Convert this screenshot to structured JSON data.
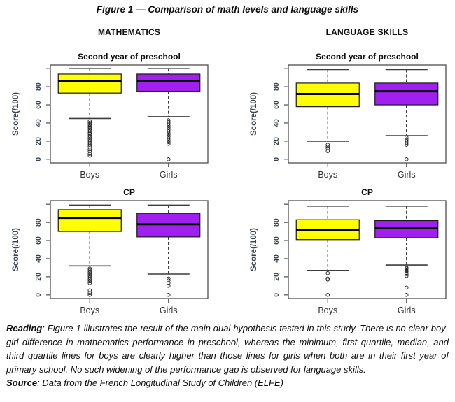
{
  "figure": {
    "title": "Figure 1 — Comparison of math levels and language skills",
    "columns": [
      {
        "header": "MATHEMATICS"
      },
      {
        "header": "LANGUAGE SKILLS"
      }
    ],
    "notes": {
      "reading_label": "Reading",
      "reading_text": ": Figure 1 illustrates the result of the main dual hypothesis tested in this study. There is no clear boy-girl difference in mathematics performance in preschool, whereas the minimum, first quartile, median, and third quartile lines for boys are clearly higher than those lines for girls when both are in their first year of primary school. No such widening of the performance gap is observed for language skills.",
      "source_label": "Source",
      "source_text": ": Data from the French Longitudinal Study of Children (ELFE)"
    }
  },
  "colors": {
    "boys_box": "#FFFF00",
    "girls_box": "#A020F0",
    "box_border": "#1a1a1a",
    "median": "#000000",
    "whisker": "#1a1a1a",
    "cap": "#3c3c3c",
    "frame": "#4d4d4d",
    "outlier": "#2a2a2a",
    "axis_text": "#38424f"
  },
  "chart_data": [
    {
      "type": "box",
      "panel": "MATHEMATICS",
      "title": "Second year of preschool",
      "ylabel": "Score(/100)",
      "ylim": [
        -4,
        104
      ],
      "yticks_labeled": [
        0,
        20,
        40,
        60,
        80
      ],
      "yticks_unlabeled": [
        100
      ],
      "categories": [
        "Boys",
        "Girls"
      ],
      "series": [
        {
          "name": "Boys",
          "color_key": "boys_box",
          "whisker_low": 45,
          "q1": 73,
          "median": 86,
          "q3": 94,
          "whisker_high": 100,
          "outliers": [
            42,
            40,
            38,
            36,
            35,
            33,
            31,
            29,
            28,
            26,
            24,
            22,
            20,
            18,
            16,
            14,
            11,
            9,
            6,
            4
          ]
        },
        {
          "name": "Girls",
          "color_key": "girls_box",
          "whisker_low": 47,
          "q1": 75,
          "median": 86,
          "q3": 94,
          "whisker_high": 100,
          "outliers": [
            43,
            41,
            39,
            37,
            35,
            33,
            31,
            29,
            27,
            25,
            23,
            21,
            19,
            17,
            0
          ]
        }
      ]
    },
    {
      "type": "box",
      "panel": "LANGUAGE SKILLS",
      "title": "Second year of preschool",
      "ylabel": "Score(/100)",
      "ylim": [
        -4,
        104
      ],
      "yticks_labeled": [
        0,
        20,
        40,
        60,
        80
      ],
      "yticks_unlabeled": [
        100
      ],
      "categories": [
        "Boys",
        "Girls"
      ],
      "series": [
        {
          "name": "Boys",
          "color_key": "boys_box",
          "whisker_low": 20,
          "q1": 58,
          "median": 72,
          "q3": 84,
          "whisker_high": 99,
          "outliers": [
            16,
            14,
            12,
            9
          ]
        },
        {
          "name": "Girls",
          "color_key": "girls_box",
          "whisker_low": 26,
          "q1": 60,
          "median": 75,
          "q3": 84,
          "whisker_high": 99,
          "outliers": [
            24,
            22,
            20,
            18,
            16,
            0
          ]
        }
      ]
    },
    {
      "type": "box",
      "panel": "MATHEMATICS",
      "title": "CP",
      "ylabel": "Score(/100)",
      "ylim": [
        -4,
        104
      ],
      "yticks_labeled": [
        0,
        20,
        40,
        60,
        80
      ],
      "yticks_unlabeled": [
        100
      ],
      "categories": [
        "Boys",
        "Girls"
      ],
      "series": [
        {
          "name": "Boys",
          "color_key": "boys_box",
          "whisker_low": 32,
          "q1": 70,
          "median": 85,
          "q3": 94,
          "whisker_high": 99,
          "outliers": [
            29,
            27,
            25,
            23,
            21,
            19,
            17,
            15,
            13,
            5,
            2,
            0
          ]
        },
        {
          "name": "Girls",
          "color_key": "girls_box",
          "whisker_low": 23,
          "q1": 64,
          "median": 78,
          "q3": 90,
          "whisker_high": 99,
          "outliers": [
            18,
            16,
            13,
            10,
            0
          ]
        }
      ]
    },
    {
      "type": "box",
      "panel": "LANGUAGE SKILLS",
      "title": "CP",
      "ylabel": "Score(/100)",
      "ylim": [
        -4,
        104
      ],
      "yticks_labeled": [
        0,
        20,
        40,
        60,
        80
      ],
      "yticks_unlabeled": [
        100
      ],
      "categories": [
        "Boys",
        "Girls"
      ],
      "series": [
        {
          "name": "Boys",
          "color_key": "boys_box",
          "whisker_low": 27,
          "q1": 61,
          "median": 72,
          "q3": 83,
          "whisker_high": 98,
          "outliers": [
            24,
            18,
            17,
            0
          ]
        },
        {
          "name": "Girls",
          "color_key": "girls_box",
          "whisker_low": 33,
          "q1": 63,
          "median": 74,
          "q3": 82,
          "whisker_high": 98,
          "outliers": [
            30,
            29,
            27,
            26,
            24,
            23,
            21,
            8,
            0
          ]
        }
      ]
    }
  ]
}
